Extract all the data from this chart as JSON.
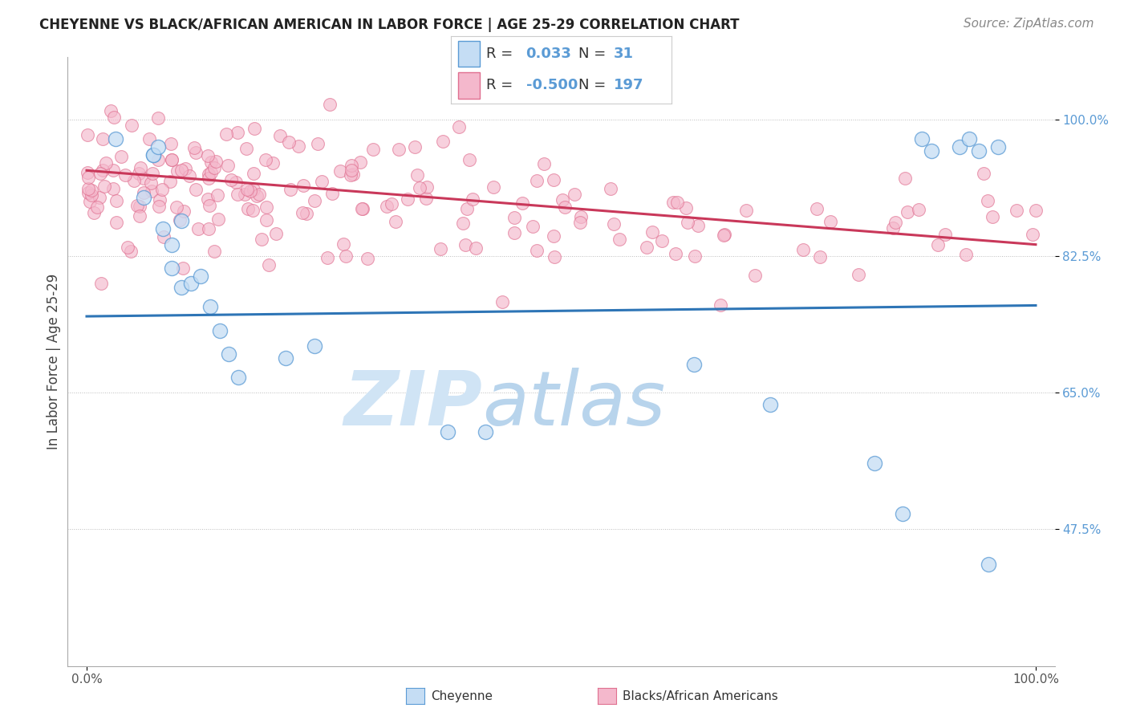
{
  "title": "CHEYENNE VS BLACK/AFRICAN AMERICAN IN LABOR FORCE | AGE 25-29 CORRELATION CHART",
  "source": "Source: ZipAtlas.com",
  "ylabel": "In Labor Force | Age 25-29",
  "xlim": [
    -0.02,
    1.02
  ],
  "ylim": [
    0.3,
    1.08
  ],
  "yticks": [
    0.475,
    0.65,
    0.825,
    1.0
  ],
  "ytick_labels": [
    "47.5%",
    "65.0%",
    "82.5%",
    "100.0%"
  ],
  "xticks": [
    0.0,
    1.0
  ],
  "xtick_labels": [
    "0.0%",
    "100.0%"
  ],
  "legend_R_blue": "0.033",
  "legend_N_blue": "31",
  "legend_R_pink": "-0.500",
  "legend_N_pink": "197",
  "blue_fill": "#c5ddf4",
  "blue_edge": "#5b9bd5",
  "pink_fill": "#f4b8cc",
  "pink_edge": "#e07090",
  "blue_line_color": "#2e75b6",
  "pink_line_color": "#c9385a",
  "watermark_zip": "ZIP",
  "watermark_atlas": "atlas",
  "watermark_color": "#d0e4f5",
  "blue_line_y0": 0.748,
  "blue_line_y1": 0.762,
  "pink_line_y0": 0.935,
  "pink_line_y1": 0.84,
  "blue_seed": 77,
  "pink_seed": 42,
  "title_fontsize": 12,
  "source_fontsize": 11,
  "tick_fontsize": 11,
  "legend_fontsize": 13
}
